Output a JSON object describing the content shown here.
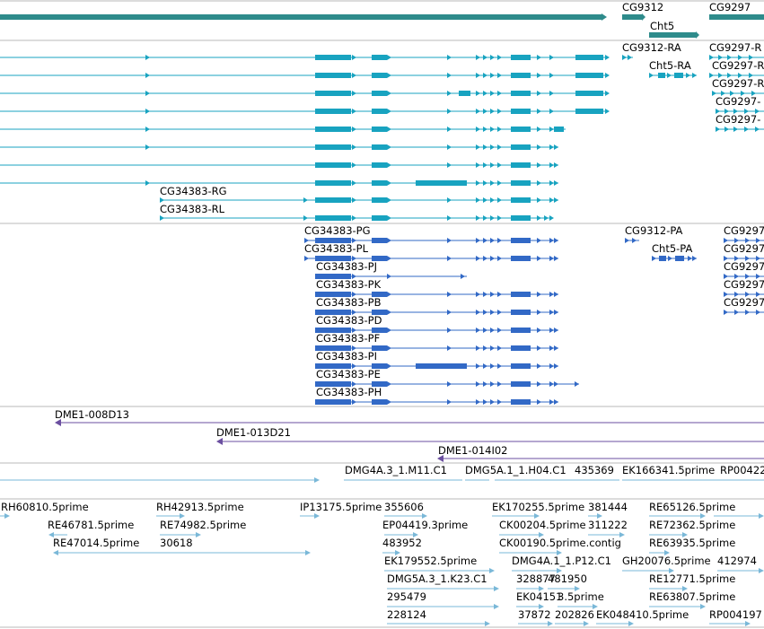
{
  "colors": {
    "gene": "#2e8b8b",
    "transcript": "#18a3c0",
    "protein": "#3269c6",
    "clone": "#6b4fa0",
    "est": "#7ab8d8",
    "divider": "#b8b8b8"
  },
  "genes": [
    {
      "id": "gene-cg34383",
      "label": ""
    },
    {
      "id": "gene-cg9312",
      "label": "CG9312"
    },
    {
      "id": "gene-cht5",
      "label": "Cht5"
    },
    {
      "id": "gene-cg9297",
      "label": "CG9297"
    }
  ],
  "transcript_labels": [
    "CG9312-RA",
    "CG9297-R",
    "Cht5-RA",
    "CG9297-R",
    "CG9297-R",
    "CG9297-",
    "CG9297-",
    "CG34383-RG",
    "CG34383-RL"
  ],
  "protein_labels": [
    "CG34383-PG",
    "CG9312-PA",
    "CG9297",
    "CG34383-PL",
    "Cht5-PA",
    "CG9297",
    "CG34383-PJ",
    "CG9297",
    "CG34383-PK",
    "CG9297",
    "CG34383-PB",
    "CG9297",
    "CG34383-PD",
    "CG34383-PF",
    "CG34383-PI",
    "CG34383-PE",
    "CG34383-PH"
  ],
  "clone_labels": [
    "DME1-008D13",
    "DME1-013D21",
    "DME1-014I02"
  ],
  "cdna_labels": [
    "DMG4A.3_1.M11.C1",
    "DMG5A.1_1.H04.C1",
    "435369",
    "EK166341.5prime",
    "RP00422"
  ],
  "est_labels": [
    "RH60810.5prime",
    "RH42913.5prime",
    "IP13175.5prime",
    "355606",
    "EK170255.5prime",
    "381444",
    "RE65126.5prime",
    "RE46781.5prime",
    "RE74982.5prime",
    "EP04419.3prime",
    "CK00204.5prime",
    "311222",
    "RE72362.5prime",
    "RE47014.5prime",
    "30618",
    "483952",
    "CK00190.5prime.contig",
    "RE63935.5prime",
    "EK179552.5prime",
    "DMG4A.1_1.P12.C1",
    "GH20076.5prime",
    "412974",
    "DMG5A.3_1.K23.C1",
    "328877",
    "481950",
    "RE12771.5prime",
    "295479",
    "EK04151",
    "3.5prime",
    "RE63807.5prime",
    "228124",
    "37872",
    "202826",
    "EK048410.5prime",
    "RP004197"
  ]
}
